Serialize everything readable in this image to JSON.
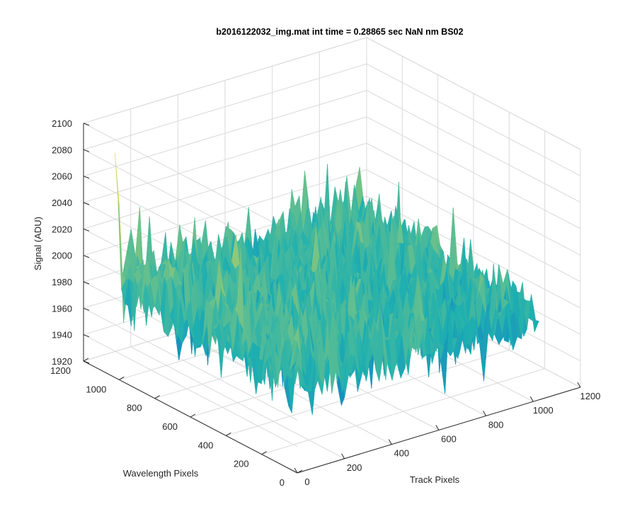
{
  "chart_data": {
    "type": "surface",
    "title": "b2016122032_img.mat int time = 0.28865 sec  NaN nm BS02",
    "xlabel": "Track Pixels",
    "ylabel": "Wavelength Pixels",
    "zlabel": "Signal (ADU)",
    "xlim": [
      0,
      1200
    ],
    "ylim": [
      0,
      1200
    ],
    "zlim": [
      1920,
      2100
    ],
    "xticks": [
      "0",
      "200",
      "400",
      "600",
      "800",
      "1000",
      "1200"
    ],
    "yticks": [
      "0",
      "200",
      "400",
      "600",
      "800",
      "1000",
      "1200"
    ],
    "zticks": [
      "1920",
      "1940",
      "1960",
      "1980",
      "2000",
      "2020",
      "2040",
      "2060",
      "2080",
      "2100"
    ],
    "grid": true,
    "colormap": "parula",
    "colors": {
      "low": "#0a5bd8",
      "mid": "#1fb0b0",
      "high": "#cfd65a"
    },
    "surface": {
      "x_extent": [
        0,
        1024
      ],
      "y_extent": [
        0,
        1024
      ],
      "mean_signal": 1990,
      "typical_min": 1935,
      "typical_max": 2035,
      "spike_peak": {
        "x": 0,
        "y": 1024,
        "z": 2090
      }
    }
  }
}
